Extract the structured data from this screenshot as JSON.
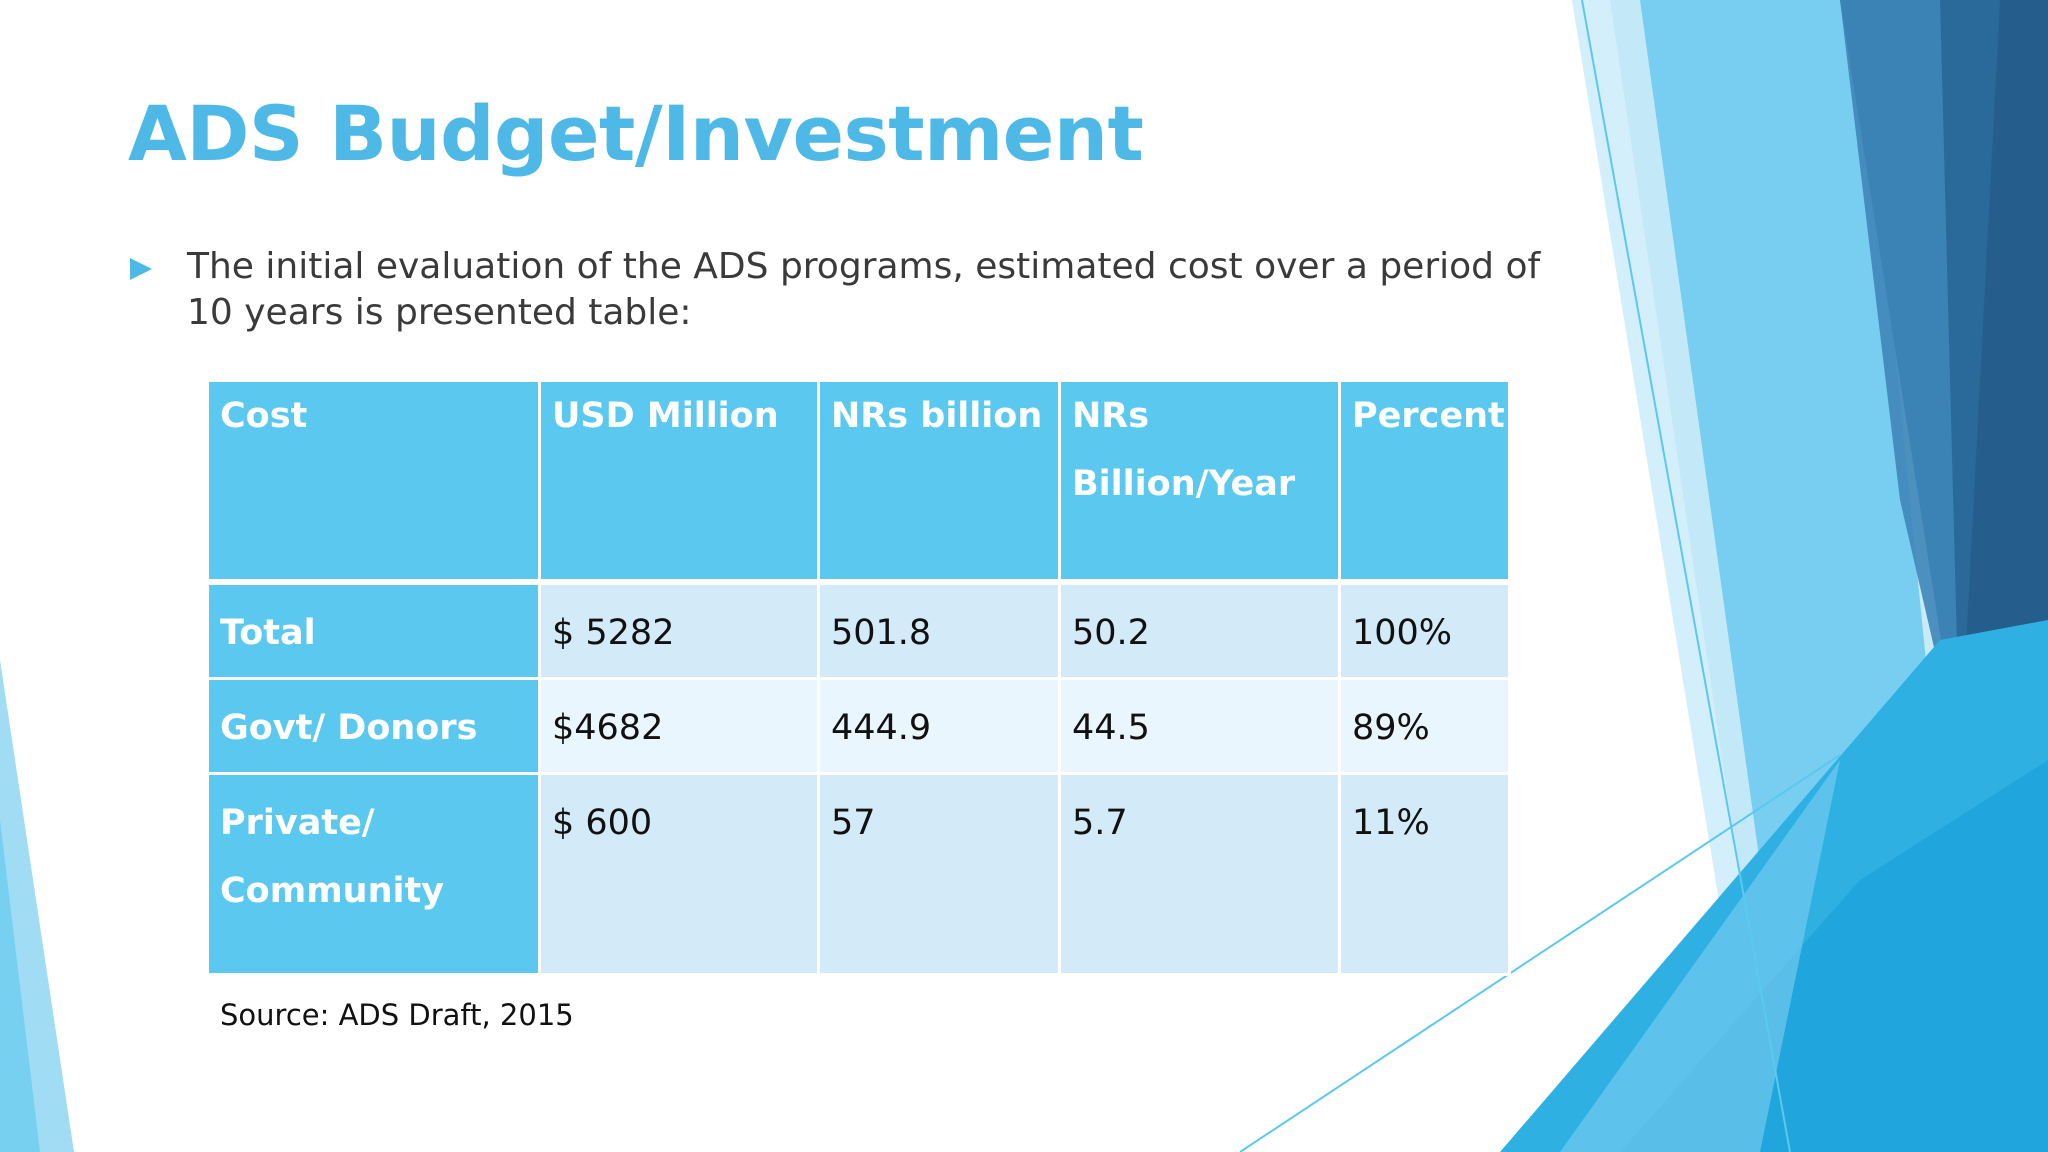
{
  "slide": {
    "title": "ADS Budget/Investment",
    "bullet": "The initial evaluation of the ADS programs, estimated cost over a period of 10 years is presented table:",
    "source": "Source: ADS Draft, 2015"
  },
  "table": {
    "headers": [
      "Cost",
      "USD Million",
      "NRs billion",
      "NRs Billion/Year",
      "Percent"
    ],
    "rows": [
      [
        "Total",
        "$ 5282",
        "501.8",
        "50.2",
        "100%"
      ],
      [
        "Govt/ Donors",
        "$4682",
        "444.9",
        "44.5",
        "89%"
      ],
      [
        "Private/ Community",
        "$ 600",
        "57",
        "5.7",
        "11%"
      ]
    ]
  },
  "colors": {
    "title": "#4EB9E6",
    "header_fill": "#5BC8EF",
    "row_fill_dark": "#D3EAF8",
    "row_fill_light": "#EAF6FD",
    "deco_light": "#8FD6F1",
    "deco_mid": "#3FB4E5",
    "deco_dark": "#2A6A9B"
  }
}
